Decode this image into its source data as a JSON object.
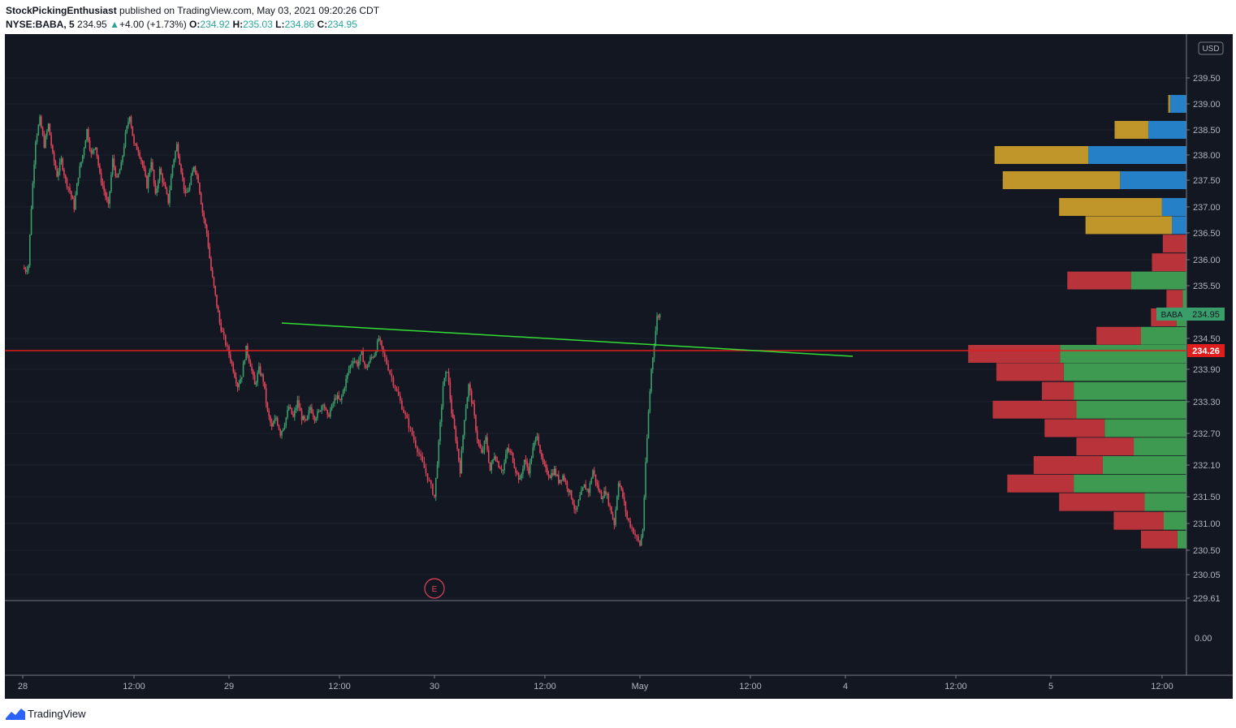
{
  "header": {
    "publisher": "StockPickingEnthusiast",
    "published_text": "published on TradingView.com, May 03, 2021 09:20:26 CDT",
    "symbol": "NYSE:BABA, 5",
    "last": "234.95",
    "change": "+4.00 (+1.73%)",
    "o_label": "O:",
    "o_value": "234.92",
    "h_label": "H:",
    "h_value": "235.03",
    "l_label": "L:",
    "l_value": "234.86",
    "c_label": "C:",
    "c_value": "234.95"
  },
  "footer": {
    "brand": "TradingView"
  },
  "colors": {
    "background": "#131722",
    "up": "#3a9e6b",
    "down": "#e0455b",
    "trendline": "#33dd33",
    "hline": "#e01e1e",
    "vp_up": "#3d9a50",
    "vp_down": "#b8333a",
    "vp_va_up": "#2580c8",
    "vp_va_down": "#c0962a"
  },
  "chart_data": {
    "type": "candlestick",
    "symbol": "NYSE:BABA",
    "interval": "5",
    "currency": "USD",
    "ylim": [
      229.61,
      239.95
    ],
    "price_ticks": [
      "239.50",
      "239.00",
      "238.50",
      "238.00",
      "237.50",
      "237.00",
      "236.50",
      "236.00",
      "235.50",
      "234.50",
      "233.90",
      "233.30",
      "232.70",
      "232.10",
      "231.50",
      "231.00",
      "230.50",
      "230.05",
      "229.61"
    ],
    "x_ticks": [
      "28",
      "12:00",
      "29",
      "12:00",
      "30",
      "12:00",
      "May",
      "12:00",
      "4",
      "12:00",
      "5",
      "12:00"
    ],
    "last_price_label": {
      "symbol": "BABA",
      "price": "234.95"
    },
    "horizontal_line": {
      "price": 234.26,
      "label": "234.26"
    },
    "trendline": {
      "start": {
        "time": "29 09:30",
        "price": 234.82
      },
      "end": {
        "time": "4 03:00",
        "price": 234.15
      }
    },
    "earnings_marker": {
      "label": "E",
      "time": "30 00:00"
    },
    "indicator_pane": {
      "label": "0.00"
    },
    "close_path": [
      [
        "28 00:00",
        235.85
      ],
      [
        "28 00:20",
        235.8
      ],
      [
        "28 00:40",
        235.9
      ],
      [
        "28 01:00",
        237.0
      ],
      [
        "28 01:30",
        238.3
      ],
      [
        "28 02:00",
        238.7
      ],
      [
        "28 02:30",
        238.2
      ],
      [
        "28 03:00",
        238.6
      ],
      [
        "28 03:30",
        238.0
      ],
      [
        "28 04:00",
        237.6
      ],
      [
        "28 04:30",
        237.9
      ],
      [
        "28 05:00",
        237.5
      ],
      [
        "28 05:30",
        237.3
      ],
      [
        "28 06:00",
        237.0
      ],
      [
        "28 06:30",
        237.6
      ],
      [
        "28 07:00",
        238.0
      ],
      [
        "28 07:30",
        238.5
      ],
      [
        "28 08:00",
        238.0
      ],
      [
        "28 08:30",
        238.2
      ],
      [
        "28 09:00",
        237.6
      ],
      [
        "28 09:30",
        237.3
      ],
      [
        "28 10:00",
        237.0
      ],
      [
        "28 10:30",
        237.9
      ],
      [
        "28 11:00",
        237.5
      ],
      [
        "28 11:30",
        237.8
      ],
      [
        "28 12:00",
        238.4
      ],
      [
        "28 12:30",
        238.8
      ],
      [
        "28 13:00",
        238.2
      ],
      [
        "28 13:30",
        238.1
      ],
      [
        "28 14:00",
        237.8
      ],
      [
        "28 14:30",
        237.4
      ],
      [
        "28 15:00",
        237.9
      ],
      [
        "28 15:30",
        237.2
      ],
      [
        "28 16:00",
        237.7
      ],
      [
        "28 16:30",
        237.4
      ],
      [
        "28 17:00",
        237.1
      ],
      [
        "28 17:30",
        237.8
      ],
      [
        "28 18:00",
        238.2
      ],
      [
        "28 18:30",
        237.7
      ],
      [
        "28 19:00",
        237.2
      ],
      [
        "28 19:30",
        237.4
      ],
      [
        "28 20:00",
        237.8
      ],
      [
        "28 20:30",
        237.5
      ],
      [
        "28 21:00",
        236.9
      ],
      [
        "28 21:30",
        236.5
      ],
      [
        "28 22:00",
        235.8
      ],
      [
        "28 22:30",
        235.3
      ],
      [
        "28 23:00",
        234.8
      ],
      [
        "28 23:30",
        234.5
      ],
      [
        "29 00:00",
        234.2
      ],
      [
        "29 00:30",
        233.9
      ],
      [
        "29 01:00",
        233.6
      ],
      [
        "29 01:30",
        233.8
      ],
      [
        "29 02:00",
        234.3
      ],
      [
        "29 02:30",
        234.0
      ],
      [
        "29 03:00",
        233.6
      ],
      [
        "29 03:30",
        233.9
      ],
      [
        "29 04:00",
        233.7
      ],
      [
        "29 04:30",
        233.1
      ],
      [
        "29 05:00",
        232.8
      ],
      [
        "29 05:30",
        233.0
      ],
      [
        "29 06:00",
        232.7
      ],
      [
        "29 06:30",
        232.9
      ],
      [
        "29 07:00",
        233.2
      ],
      [
        "29 07:30",
        233.0
      ],
      [
        "29 08:00",
        233.3
      ],
      [
        "29 08:30",
        233.0
      ],
      [
        "29 09:00",
        232.9
      ],
      [
        "29 09:30",
        233.2
      ],
      [
        "29 10:00",
        233.0
      ],
      [
        "29 10:30",
        233.1
      ],
      [
        "29 11:00",
        233.3
      ],
      [
        "29 11:30",
        233.0
      ],
      [
        "29 12:00",
        233.2
      ],
      [
        "29 12:30",
        233.4
      ],
      [
        "29 13:00",
        233.3
      ],
      [
        "29 13:30",
        233.6
      ],
      [
        "29 14:00",
        233.9
      ],
      [
        "29 14:30",
        234.1
      ],
      [
        "29 15:00",
        234.0
      ],
      [
        "29 15:30",
        234.2
      ],
      [
        "29 16:00",
        233.9
      ],
      [
        "29 16:30",
        234.1
      ],
      [
        "29 17:00",
        234.2
      ],
      [
        "29 17:30",
        234.5
      ],
      [
        "29 18:00",
        234.2
      ],
      [
        "30 00:00",
        231.5
      ],
      [
        "30 00:30",
        232.5
      ],
      [
        "30 01:00",
        233.6
      ],
      [
        "30 01:30",
        233.9
      ],
      [
        "30 02:00",
        233.1
      ],
      [
        "30 02:30",
        232.6
      ],
      [
        "30 03:00",
        232.0
      ],
      [
        "30 03:30",
        233.0
      ],
      [
        "30 04:00",
        233.6
      ],
      [
        "30 04:30",
        233.2
      ],
      [
        "30 05:00",
        232.6
      ],
      [
        "30 05:30",
        232.3
      ],
      [
        "30 06:00",
        232.6
      ],
      [
        "30 06:30",
        232.0
      ],
      [
        "30 07:00",
        232.3
      ],
      [
        "30 07:30",
        232.1
      ],
      [
        "30 08:00",
        232.0
      ],
      [
        "30 08:30",
        232.4
      ],
      [
        "30 09:00",
        232.3
      ],
      [
        "30 09:30",
        232.0
      ],
      [
        "30 10:00",
        231.8
      ],
      [
        "30 10:30",
        232.2
      ],
      [
        "30 11:00",
        232.0
      ],
      [
        "30 11:30",
        232.4
      ],
      [
        "30 12:00",
        232.7
      ],
      [
        "30 12:30",
        232.2
      ],
      [
        "30 13:00",
        232.0
      ],
      [
        "30 13:30",
        231.9
      ],
      [
        "30 14:00",
        232.0
      ],
      [
        "30 14:30",
        231.8
      ],
      [
        "30 15:00",
        231.9
      ],
      [
        "30 15:30",
        231.7
      ],
      [
        "30 16:00",
        231.5
      ],
      [
        "30 16:30",
        231.2
      ],
      [
        "30 17:00",
        231.5
      ],
      [
        "30 17:30",
        231.7
      ],
      [
        "30 18:00",
        231.6
      ],
      [
        "30 18:30",
        232.0
      ],
      [
        "30 19:00",
        231.7
      ],
      [
        "30 19:30",
        231.5
      ],
      [
        "30 20:00",
        231.6
      ],
      [
        "30 20:30",
        231.3
      ],
      [
        "30 21:00",
        231.0
      ],
      [
        "30 21:30",
        231.8
      ],
      [
        "30 22:00",
        231.5
      ],
      [
        "30 22:30",
        231.1
      ],
      [
        "May 00:00",
        230.6
      ],
      [
        "May 00:20",
        230.9
      ],
      [
        "May 00:40",
        232.1
      ],
      [
        "May 01:00",
        233.1
      ],
      [
        "May 01:20",
        233.9
      ],
      [
        "May 01:40",
        234.4
      ],
      [
        "May 02:00",
        234.9
      ],
      [
        "May 02:20",
        234.95
      ]
    ],
    "volume_profile": [
      {
        "price": 239.0,
        "up": 0.18,
        "down": 0.02,
        "value_area": true
      },
      {
        "price": 238.5,
        "up": 0.42,
        "down": 0.37,
        "value_area": true
      },
      {
        "price": 238.0,
        "up": 1.08,
        "down": 1.03,
        "value_area": true
      },
      {
        "price": 237.5,
        "up": 0.73,
        "down": 1.29,
        "value_area": true
      },
      {
        "price": 237.0,
        "up": 0.27,
        "down": 1.13,
        "value_area": true
      },
      {
        "price": 236.65,
        "up": 0.16,
        "down": 0.95,
        "value_area": true
      },
      {
        "price": 236.3,
        "up": 0.0,
        "down": 0.26,
        "value_area": false
      },
      {
        "price": 235.95,
        "up": 0.0,
        "down": 0.38,
        "value_area": false
      },
      {
        "price": 235.6,
        "up": 0.61,
        "down": 0.7,
        "value_area": false
      },
      {
        "price": 235.25,
        "up": 0.04,
        "down": 0.18,
        "value_area": false
      },
      {
        "price": 234.9,
        "up": 0.11,
        "down": 0.28,
        "value_area": false
      },
      {
        "price": 234.55,
        "up": 0.5,
        "down": 0.49,
        "value_area": false
      },
      {
        "price": 234.2,
        "up": 1.39,
        "down": 1.01,
        "value_area": false
      },
      {
        "price": 233.85,
        "up": 1.35,
        "down": 0.74,
        "value_area": false
      },
      {
        "price": 233.5,
        "up": 1.24,
        "down": 0.35,
        "value_area": false
      },
      {
        "price": 233.15,
        "up": 1.21,
        "down": 0.92,
        "value_area": false
      },
      {
        "price": 232.8,
        "up": 0.9,
        "down": 0.66,
        "value_area": false
      },
      {
        "price": 232.45,
        "up": 0.58,
        "down": 0.63,
        "value_area": false
      },
      {
        "price": 232.1,
        "up": 0.92,
        "down": 0.76,
        "value_area": false
      },
      {
        "price": 231.75,
        "up": 1.24,
        "down": 0.73,
        "value_area": false
      },
      {
        "price": 231.4,
        "up": 0.46,
        "down": 0.94,
        "value_area": false
      },
      {
        "price": 231.05,
        "up": 0.25,
        "down": 0.55,
        "value_area": false
      },
      {
        "price": 230.7,
        "up": 0.1,
        "down": 0.4,
        "value_area": false
      }
    ]
  }
}
